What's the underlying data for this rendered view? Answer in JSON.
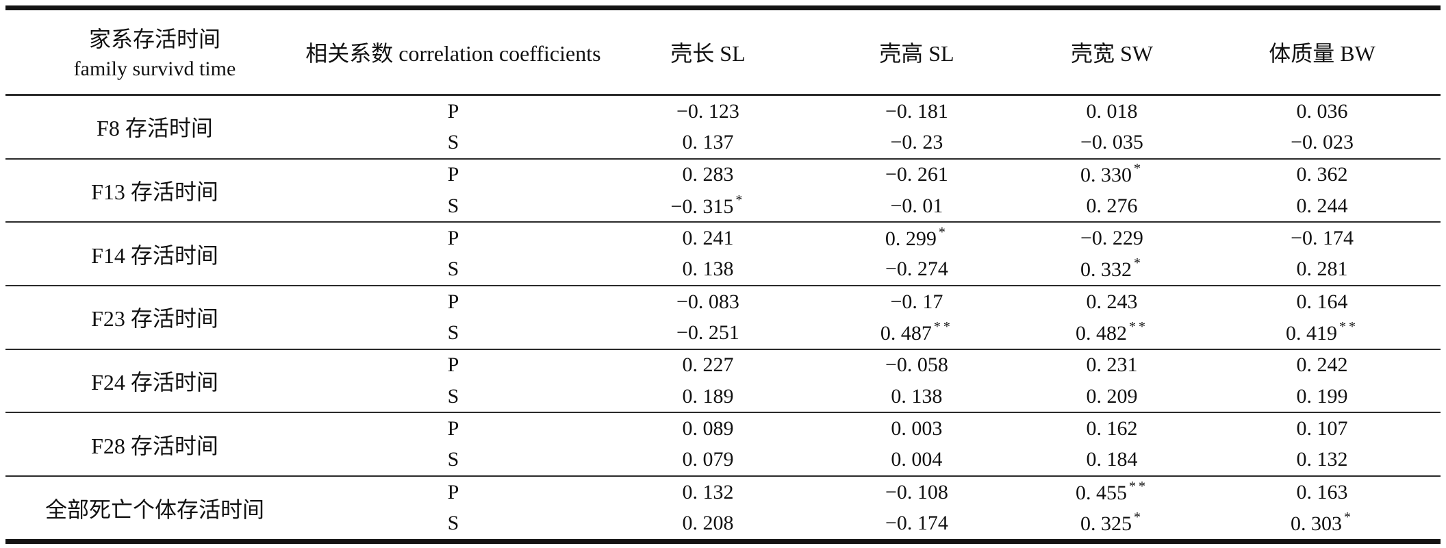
{
  "table": {
    "header": {
      "family_zh": "家系存活时间",
      "family_en": "family survivd time",
      "coeff": "相关系数 correlation coefficients",
      "col_shell_length": "壳长 SL",
      "col_shell_height": "壳高 SL",
      "col_shell_width": "壳宽 SW",
      "col_body_weight": "体质量 BW"
    },
    "groups": [
      {
        "label": "F8 存活时间",
        "rows": [
          {
            "coef": "P",
            "values": [
              "−0. 123",
              "−0. 181",
              "0. 018",
              "0. 036"
            ]
          },
          {
            "coef": "S",
            "values": [
              "0. 137",
              "−0. 23",
              "−0. 035",
              "−0. 023"
            ]
          }
        ]
      },
      {
        "label": "F13 存活时间",
        "rows": [
          {
            "coef": "P",
            "values": [
              "0. 283",
              "−0. 261",
              "0. 330*",
              "0. 362"
            ]
          },
          {
            "coef": "S",
            "values": [
              "−0. 315*",
              "−0. 01",
              "0. 276",
              "0. 244"
            ]
          }
        ]
      },
      {
        "label": "F14 存活时间",
        "rows": [
          {
            "coef": "P",
            "values": [
              "0. 241",
              "0. 299*",
              "−0. 229",
              "−0. 174"
            ]
          },
          {
            "coef": "S",
            "values": [
              "0. 138",
              "−0. 274",
              "0. 332*",
              "0. 281"
            ]
          }
        ]
      },
      {
        "label": "F23 存活时间",
        "rows": [
          {
            "coef": "P",
            "values": [
              "−0. 083",
              "−0. 17",
              "0. 243",
              "0. 164"
            ]
          },
          {
            "coef": "S",
            "values": [
              "−0. 251",
              "0. 487**",
              "0. 482**",
              "0. 419**"
            ]
          }
        ]
      },
      {
        "label": "F24 存活时间",
        "rows": [
          {
            "coef": "P",
            "values": [
              "0. 227",
              "−0. 058",
              "0. 231",
              "0. 242"
            ]
          },
          {
            "coef": "S",
            "values": [
              "0. 189",
              "0. 138",
              "0. 209",
              "0. 199"
            ]
          }
        ]
      },
      {
        "label": "F28 存活时间",
        "rows": [
          {
            "coef": "P",
            "values": [
              "0. 089",
              "0. 003",
              "0. 162",
              "0. 107"
            ]
          },
          {
            "coef": "S",
            "values": [
              "0. 079",
              "0. 004",
              "0. 184",
              "0. 132"
            ]
          }
        ]
      },
      {
        "label": "全部死亡个体存活时间",
        "rows": [
          {
            "coef": "P",
            "values": [
              "0. 132",
              "−0. 108",
              "0. 455**",
              "0. 163"
            ]
          },
          {
            "coef": "S",
            "values": [
              "0. 208",
              "−0. 174",
              "0. 325*",
              "0. 303*"
            ]
          }
        ]
      }
    ]
  }
}
